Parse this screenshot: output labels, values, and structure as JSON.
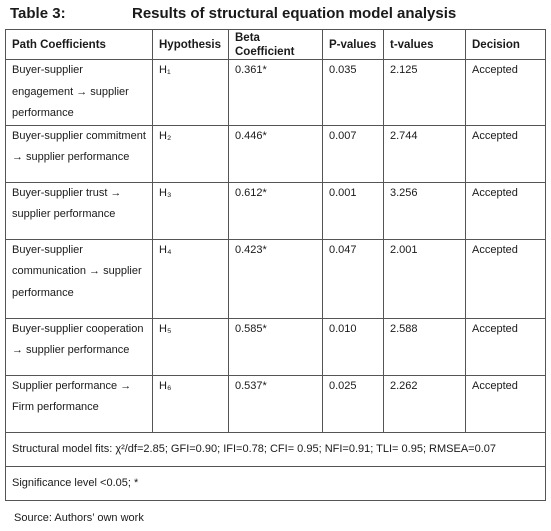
{
  "table_title": {
    "label": "Table 3:",
    "text": "Results of structural equation model analysis"
  },
  "headers": [
    "Path Coefficients",
    "Hypothesis",
    "Beta Coefficient",
    "P-values",
    "t-values",
    "Decision"
  ],
  "rows": [
    {
      "path": "Buyer-supplier engagement → supplier performance",
      "hypothesis": "H₁",
      "beta": "0.361*",
      "p": "0.035",
      "t": "2.125",
      "decision": "Accepted"
    },
    {
      "path": "Buyer-supplier commitment → supplier performance",
      "hypothesis": "H₂",
      "beta": "0.446*",
      "p": "0.007",
      "t": "2.744",
      "decision": "Accepted"
    },
    {
      "path": "Buyer-supplier trust → supplier performance",
      "hypothesis": "H₃",
      "beta": "0.612*",
      "p": "0.001",
      "t": "3.256",
      "decision": "Accepted"
    },
    {
      "path": "Buyer-supplier communication → supplier performance",
      "hypothesis": "H₄",
      "beta": "0.423*",
      "p": "0.047",
      "t": "2.001",
      "decision": "Accepted"
    },
    {
      "path": "Buyer-supplier cooperation → supplier performance",
      "hypothesis": "H₅",
      "beta": "0.585*",
      "p": "0.010",
      "t": "2.588",
      "decision": "Accepted"
    },
    {
      "path": "Supplier performance → Firm performance",
      "hypothesis": "H₆",
      "beta": "0.537*",
      "p": "0.025",
      "t": "2.262",
      "decision": "Accepted"
    }
  ],
  "model_fits": "Structural model fits: χ²/df=2.85; GFI=0.90; IFI=0.78; CFI= 0.95; NFI=0.91; TLI= 0.95; RMSEA=0.07",
  "significance": "Significance level <0.05; *",
  "source": "Source: Authors’ own work"
}
